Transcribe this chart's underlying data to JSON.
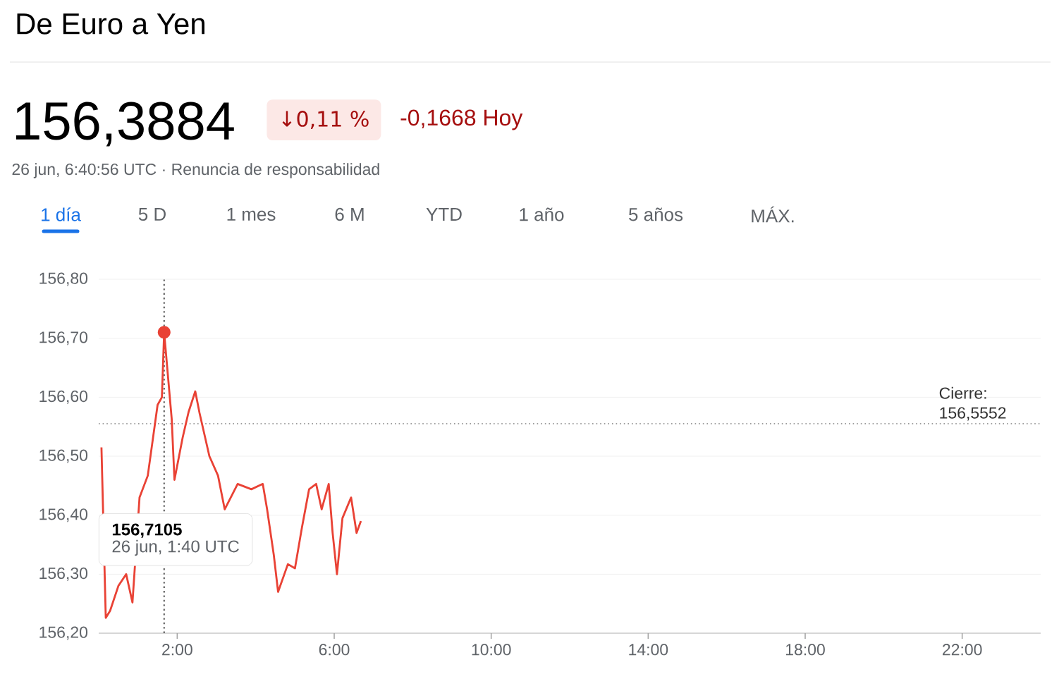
{
  "chart_data": {
    "type": "line",
    "title": "De Euro a Yen",
    "subtitle": "156,3884",
    "x": [
      0.07,
      0.18,
      0.29,
      0.5,
      0.7,
      0.86,
      1.04,
      1.25,
      1.5,
      1.61,
      1.667,
      1.86,
      1.93,
      2.14,
      2.29,
      2.46,
      2.57,
      2.82,
      3.04,
      3.21,
      3.54,
      3.89,
      4.18,
      4.29,
      4.46,
      4.57,
      4.82,
      5.0,
      5.18,
      5.36,
      5.54,
      5.68,
      5.86,
      5.96,
      6.07,
      6.21,
      6.43,
      6.57,
      6.68
    ],
    "series": [
      {
        "color": "#e94235",
        "values": [
          156.515,
          156.226,
          156.238,
          156.28,
          156.3,
          156.252,
          156.43,
          156.467,
          156.587,
          156.6,
          156.71,
          156.563,
          156.46,
          156.532,
          156.575,
          156.61,
          156.573,
          156.5,
          156.467,
          156.41,
          156.453,
          156.444,
          156.453,
          156.41,
          156.333,
          156.27,
          156.317,
          156.31,
          156.38,
          156.444,
          156.453,
          156.41,
          156.453,
          156.37,
          156.3,
          156.395,
          156.43,
          156.37,
          156.39
        ]
      }
    ],
    "xlim": [
      0,
      24
    ],
    "xticks": [
      {
        "value": 2,
        "label": "2:00"
      },
      {
        "value": 6,
        "label": "6:00"
      },
      {
        "value": 10,
        "label": "10:00"
      },
      {
        "value": 14,
        "label": "14:00"
      },
      {
        "value": 18,
        "label": "18:00"
      },
      {
        "value": 22,
        "label": "22:00"
      }
    ],
    "ylim": [
      156.2,
      156.8
    ],
    "yticks": [
      {
        "value": 156.2,
        "label": "156,20"
      },
      {
        "value": 156.3,
        "label": "156,30"
      },
      {
        "value": 156.4,
        "label": "156,40"
      },
      {
        "value": 156.5,
        "label": "156,50"
      },
      {
        "value": 156.6,
        "label": "156,60"
      },
      {
        "value": 156.7,
        "label": "156,70"
      },
      {
        "value": 156.8,
        "label": "156,80"
      }
    ],
    "grid": "y",
    "line_style": "solid",
    "ref_lines": [
      {
        "axis": "y",
        "value": 156.5552,
        "label": "Cierre: 156,5552",
        "line_style": "dotted"
      },
      {
        "axis": "x",
        "value": 1.667,
        "line_style": "dotted"
      }
    ],
    "annotations": [
      "↓0,11 %",
      "-0,1668 Hoy",
      "26 jun, 6:40:56 UTC · Renuncia de responsabilidad",
      "1 día",
      "5 D",
      "1 mes",
      "6 M",
      "YTD",
      "1 año",
      "5 años",
      "MÁX.",
      "156,7105",
      "26 jun, 1:40 UTC"
    ]
  }
}
